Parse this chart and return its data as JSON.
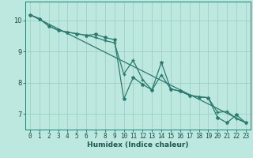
{
  "xlabel": "Humidex (Indice chaleur)",
  "ylabel": "",
  "bg_color": "#bde8e0",
  "line_color": "#2a7a6e",
  "grid_color": "#99ccbb",
  "xlim": [
    -0.5,
    23.5
  ],
  "ylim": [
    6.5,
    10.6
  ],
  "yticks": [
    7,
    8,
    9,
    10
  ],
  "xticks": [
    0,
    1,
    2,
    3,
    4,
    5,
    6,
    7,
    8,
    9,
    10,
    11,
    12,
    13,
    14,
    15,
    16,
    17,
    18,
    19,
    20,
    21,
    22,
    23
  ],
  "line1_y": [
    10.18,
    10.05,
    9.82,
    9.68,
    9.62,
    9.57,
    9.52,
    9.55,
    9.45,
    9.38,
    7.48,
    8.17,
    7.95,
    7.77,
    8.65,
    7.8,
    7.73,
    7.6,
    7.55,
    7.52,
    6.88,
    6.72,
    6.97,
    6.72
  ],
  "line2_y": [
    10.18,
    10.05,
    9.82,
    9.68,
    9.62,
    9.57,
    9.52,
    9.45,
    9.35,
    9.28,
    8.28,
    8.72,
    8.1,
    7.77,
    8.25,
    7.8,
    7.73,
    7.6,
    7.55,
    7.52,
    7.05,
    7.08,
    6.85,
    6.72
  ],
  "line3_y_start": 10.18,
  "line3_y_end": 6.72,
  "marker_size": 3.0,
  "linewidth": 0.9,
  "label_fontsize": 6.0,
  "tick_fontsize": 5.5,
  "xlabel_fontsize": 6.5
}
